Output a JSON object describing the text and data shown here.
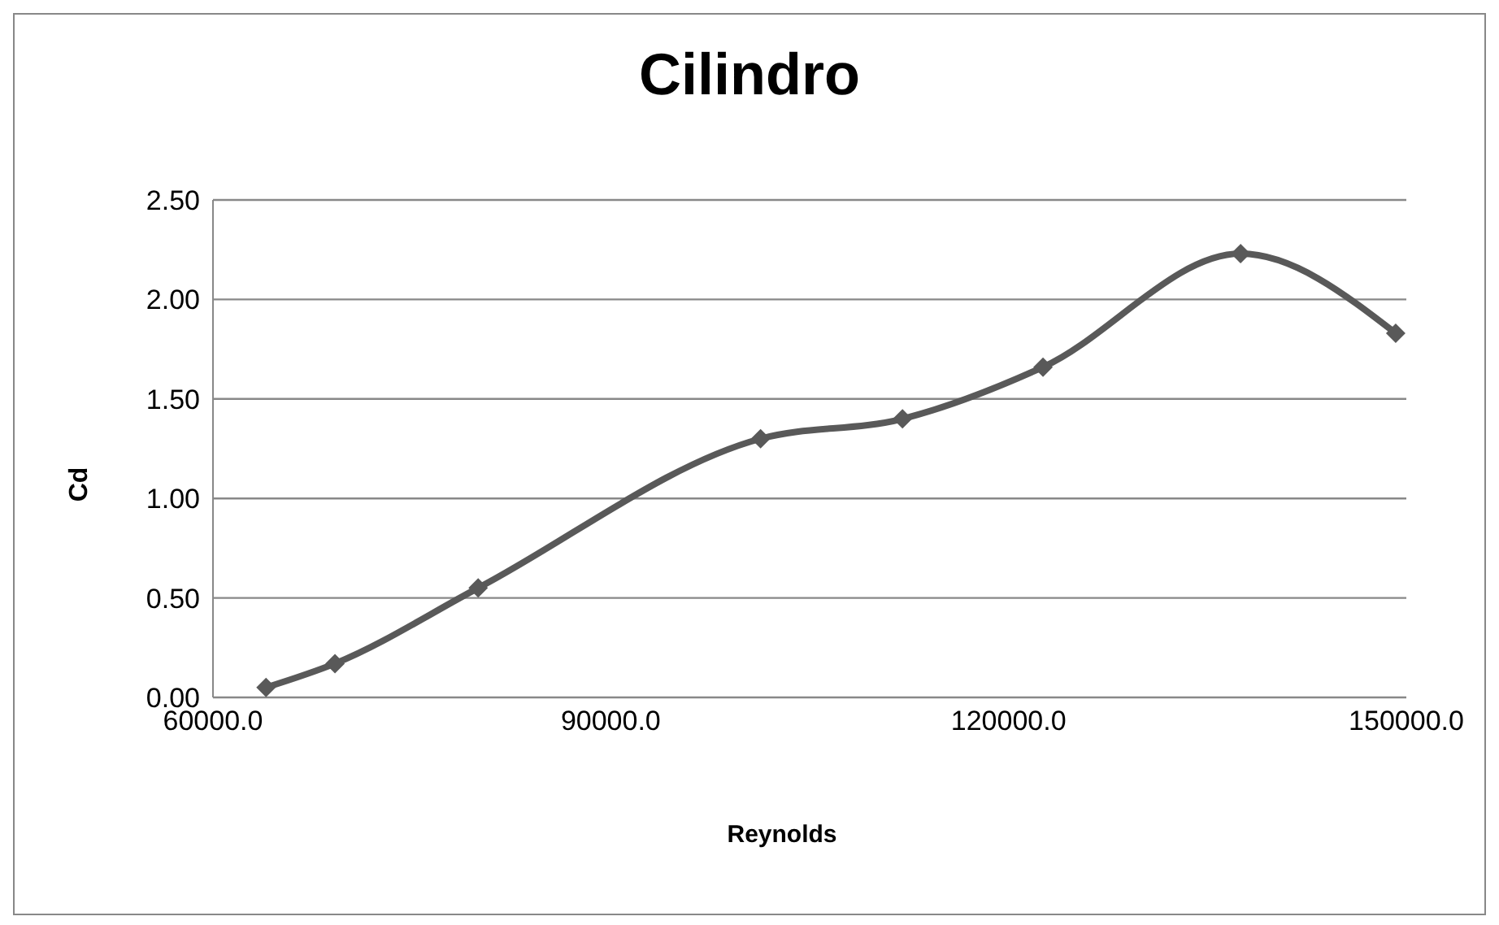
{
  "chart_data": {
    "type": "line",
    "title": "Cilindro",
    "xlabel": "Reynolds",
    "ylabel": "Cd",
    "x": [
      64000,
      69200,
      80000,
      101300,
      112000,
      122600,
      137500,
      149200
    ],
    "series": [
      {
        "color": "#595959",
        "values": [
          0.05,
          0.17,
          0.55,
          1.3,
          1.4,
          1.66,
          2.23,
          1.83
        ]
      }
    ],
    "xlim": [
      60000,
      150000
    ],
    "xticks": [
      {
        "value": 60000,
        "label": "60000.0"
      },
      {
        "value": 90000,
        "label": "90000.0"
      },
      {
        "value": 120000,
        "label": "120000.0"
      },
      {
        "value": 150000,
        "label": "150000.0"
      }
    ],
    "ylim": [
      0,
      2.5
    ],
    "yticks": [
      {
        "value": 0,
        "label": "0.00"
      },
      {
        "value": 0.5,
        "label": "0.50"
      },
      {
        "value": 1,
        "label": "1.00"
      },
      {
        "value": 1.5,
        "label": "1.50"
      },
      {
        "value": 2,
        "label": "2.00"
      },
      {
        "value": 2.5,
        "label": "2.50"
      }
    ],
    "grid": "y",
    "marker": "diamond",
    "legend": false
  }
}
